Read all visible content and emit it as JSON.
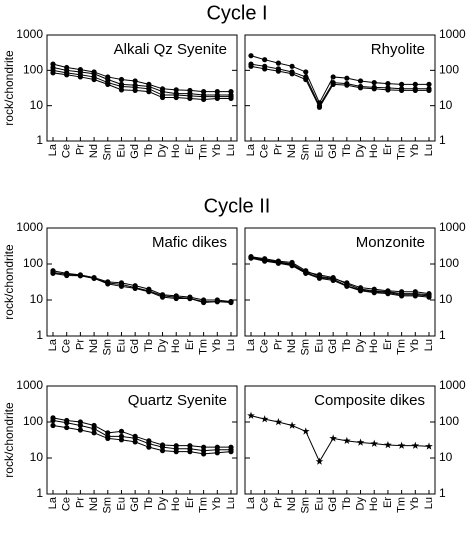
{
  "headings": [
    "Cycle I",
    "Cycle II"
  ],
  "chart_data": [
    {
      "type": "line",
      "title": "Alkali Qz Syenite",
      "y_label": "rock/chondrite",
      "log": true,
      "ytick_side": "left",
      "marker": "circle",
      "categories": [
        "La",
        "Ce",
        "Pr",
        "Nd",
        "Sm",
        "Eu",
        "Gd",
        "Tb",
        "Dy",
        "Ho",
        "Er",
        "Tm",
        "Yb",
        "Lu"
      ],
      "ylim": [
        1,
        1000
      ],
      "yticks": [
        1,
        10,
        100,
        1000
      ],
      "series": [
        {
          "color": "#000000",
          "values": [
            150,
            120,
            105,
            90,
            65,
            55,
            50,
            40,
            30,
            28,
            27,
            25,
            25,
            25
          ]
        },
        {
          "color": "#000000",
          "values": [
            120,
            100,
            90,
            80,
            55,
            40,
            38,
            35,
            25,
            22,
            22,
            20,
            20,
            20
          ]
        },
        {
          "color": "#000000",
          "values": [
            100,
            85,
            75,
            65,
            45,
            35,
            33,
            30,
            20,
            20,
            19,
            18,
            18,
            18
          ]
        },
        {
          "color": "#000000",
          "values": [
            85,
            75,
            65,
            55,
            40,
            28,
            27,
            25,
            17,
            17,
            16,
            15,
            16,
            16
          ]
        }
      ]
    },
    {
      "type": "line",
      "title": "Rhyolite",
      "log": true,
      "ytick_side": "right",
      "marker": "circle",
      "categories": [
        "La",
        "Ce",
        "Pr",
        "Nd",
        "Sm",
        "Eu",
        "Gd",
        "Tb",
        "Dy",
        "Ho",
        "Er",
        "Tm",
        "Yb",
        "Lu"
      ],
      "ylim": [
        1,
        1000
      ],
      "yticks": [
        1,
        10,
        100,
        1000
      ],
      "series": [
        {
          "color": "#000000",
          "values": [
            260,
            200,
            160,
            130,
            90,
            12,
            65,
            60,
            50,
            45,
            42,
            40,
            40,
            40
          ]
        },
        {
          "color": "#000000",
          "values": [
            150,
            130,
            110,
            90,
            65,
            10,
            45,
            42,
            35,
            33,
            32,
            30,
            30,
            30
          ]
        },
        {
          "color": "#000000",
          "values": [
            130,
            110,
            95,
            80,
            55,
            9,
            40,
            38,
            32,
            30,
            28,
            27,
            27,
            27
          ]
        }
      ]
    },
    {
      "type": "line",
      "title": "Mafic dikes",
      "y_label": "rock/chondrite",
      "log": true,
      "ytick_side": "left",
      "marker": "circle",
      "categories": [
        "La",
        "Ce",
        "Pr",
        "Nd",
        "Sm",
        "Eu",
        "Gd",
        "Tb",
        "Dy",
        "Ho",
        "Er",
        "Tm",
        "Yb",
        "Lu"
      ],
      "ylim": [
        1,
        1000
      ],
      "yticks": [
        1,
        10,
        100,
        1000
      ],
      "series": [
        {
          "color": "#000000",
          "values": [
            65,
            55,
            50,
            42,
            32,
            30,
            25,
            20,
            14,
            13,
            12,
            10,
            10,
            9
          ]
        },
        {
          "color": "#000000",
          "values": [
            58,
            52,
            48,
            40,
            30,
            27,
            22,
            18,
            13,
            12,
            11,
            9,
            9,
            9
          ]
        },
        {
          "color": "#000000",
          "values": [
            55,
            48,
            47,
            40,
            28,
            24,
            21,
            17,
            12,
            11,
            11,
            8.5,
            9,
            8.5
          ]
        }
      ]
    },
    {
      "type": "line",
      "title": "Monzonite",
      "log": true,
      "ytick_side": "right",
      "marker": "circle",
      "categories": [
        "La",
        "Ce",
        "Pr",
        "Nd",
        "Sm",
        "Eu",
        "Gd",
        "Tb",
        "Dy",
        "Ho",
        "Er",
        "Tm",
        "Yb",
        "Lu"
      ],
      "ylim": [
        1,
        1000
      ],
      "yticks": [
        1,
        10,
        100,
        1000
      ],
      "series": [
        {
          "color": "#000000",
          "values": [
            160,
            140,
            120,
            110,
            65,
            45,
            40,
            30,
            22,
            20,
            18,
            17,
            17,
            15
          ]
        },
        {
          "color": "#000000",
          "values": [
            155,
            130,
            115,
            100,
            60,
            50,
            42,
            28,
            20,
            18,
            17,
            15,
            15,
            14
          ]
        },
        {
          "color": "#000000",
          "values": [
            150,
            125,
            110,
            95,
            58,
            42,
            38,
            25,
            19,
            17,
            16,
            14,
            14,
            13
          ]
        },
        {
          "color": "#000000",
          "values": [
            145,
            120,
            105,
            90,
            55,
            40,
            35,
            24,
            18,
            16,
            15,
            13,
            13,
            12
          ]
        }
      ]
    },
    {
      "type": "line",
      "title": "Quartz Syenite",
      "y_label": "rock/chondrite",
      "log": true,
      "ytick_side": "left",
      "marker": "circle",
      "categories": [
        "La",
        "Ce",
        "Pr",
        "Nd",
        "Sm",
        "Eu",
        "Gd",
        "Tb",
        "Dy",
        "Ho",
        "Er",
        "Tm",
        "Yb",
        "Lu"
      ],
      "ylim": [
        1,
        1000
      ],
      "yticks": [
        1,
        10,
        100,
        1000
      ],
      "series": [
        {
          "color": "#000000",
          "values": [
            130,
            110,
            100,
            80,
            50,
            55,
            40,
            30,
            23,
            22,
            22,
            20,
            20,
            20
          ]
        },
        {
          "color": "#000000",
          "values": [
            110,
            95,
            80,
            65,
            40,
            40,
            35,
            25,
            20,
            18,
            18,
            16,
            17,
            17
          ]
        },
        {
          "color": "#000000",
          "values": [
            80,
            70,
            60,
            50,
            35,
            32,
            28,
            20,
            16,
            15,
            15,
            13,
            14,
            15
          ]
        }
      ]
    },
    {
      "type": "line",
      "title": "Composite dikes",
      "log": true,
      "ytick_side": "right",
      "marker": "star",
      "categories": [
        "La",
        "Ce",
        "Pr",
        "Nd",
        "Sm",
        "Eu",
        "Gd",
        "Tb",
        "Dy",
        "Ho",
        "Er",
        "Tm",
        "Yb",
        "Lu"
      ],
      "ylim": [
        1,
        1000
      ],
      "yticks": [
        1,
        10,
        100,
        1000
      ],
      "series": [
        {
          "color": "#000000",
          "values": [
            150,
            120,
            100,
            80,
            55,
            8,
            35,
            30,
            27,
            25,
            23,
            22,
            22,
            21
          ]
        }
      ]
    }
  ]
}
